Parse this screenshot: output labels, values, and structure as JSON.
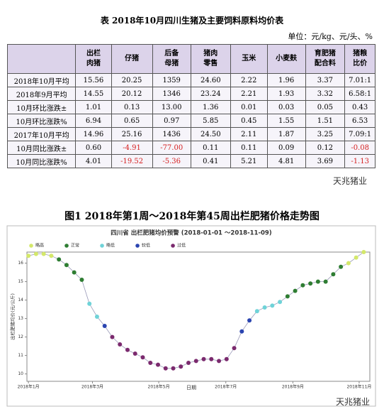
{
  "document": {
    "table_title": "表  2018年10月四川生猪及主要饲料原料均价表",
    "unit": "单位：元/kg、元/头、%",
    "table": {
      "header": [
        [],
        [
          "出栏",
          "肉猪"
        ],
        [
          "仔猪"
        ],
        [
          "后备",
          "母猪"
        ],
        [
          "猪肉",
          "零售"
        ],
        [
          "玉米"
        ],
        [
          "小麦麸"
        ],
        [
          "育肥猪",
          "配合料"
        ],
        [
          "猪粮",
          "比价"
        ]
      ],
      "rows": [
        [
          "2018年10月平均",
          "15.56",
          "20.25",
          "1359",
          "24.60",
          "2.22",
          "1.96",
          "3.37",
          "7.01:1"
        ],
        [
          "2018年9月平均",
          "14.55",
          "20.12",
          "1346",
          "23.24",
          "2.21",
          "1.93",
          "3.32",
          "6.58:1"
        ],
        [
          "10月环比涨跌±",
          "1.01",
          "0.13",
          "13.00",
          "1.36",
          "0.01",
          "0.03",
          "0.05",
          "0.43"
        ],
        [
          "10月环比涨跌%",
          "6.94",
          "0.65",
          "0.97",
          "5.85",
          "0.45",
          "1.55",
          "1.51",
          "6.53"
        ],
        [
          "2017年10月平均",
          "14.96",
          "25.16",
          "1436",
          "24.50",
          "2.11",
          "1.87",
          "3.25",
          "7.09:1"
        ],
        [
          "10月同比涨跌±",
          "0.60",
          "-4.91",
          "-77.00",
          "0.11",
          "0.11",
          "0.09",
          "0.12",
          "-0.08"
        ],
        [
          "10月同比涨跌%",
          "4.01",
          "-19.52",
          "-5.36",
          "0.41",
          "5.21",
          "4.81",
          "3.69",
          "-1.13"
        ]
      ]
    },
    "watermark": "天兆猪业",
    "figure_title": "图1  2018年第1周～2018年第45周出栏肥猪价格走势图"
  },
  "chart_data": {
    "type": "line",
    "title": "四川省 出栏肥猪均价预警  (2018-01-01 ～2018-11-09)",
    "x_label": "日期",
    "y_label": "出栏肥猪均价(元/公斤)",
    "line_color": "#9a9ab8",
    "x": [
      1,
      2,
      3,
      4,
      5,
      6,
      7,
      8,
      9,
      10,
      11,
      12,
      13,
      14,
      15,
      16,
      17,
      18,
      19,
      20,
      21,
      22,
      23,
      24,
      25,
      26,
      27,
      28,
      29,
      30,
      31,
      32,
      33,
      34,
      35,
      36,
      37,
      38,
      39,
      40,
      41,
      42,
      43,
      44,
      45
    ],
    "xlim": [
      0.8,
      45.8
    ],
    "xticks": [
      {
        "value": 1,
        "label": "2018年1月"
      },
      {
        "value": 9.4,
        "label": "2018年3月"
      },
      {
        "value": 18.1,
        "label": "2018年5月"
      },
      {
        "value": 26.9,
        "label": "2018年7月"
      },
      {
        "value": 35.7,
        "label": "2018年9月"
      },
      {
        "value": 44.4,
        "label": "2018年11月"
      }
    ],
    "ylim": [
      9.6,
      16.6
    ],
    "yticks": [
      10,
      11,
      12,
      13,
      14,
      15,
      16
    ],
    "series": [
      {
        "name": "略高",
        "color": "#d4e86a",
        "values": [
          16.4,
          16.5,
          16.5,
          16.4,
          null,
          null,
          null,
          null,
          null,
          null,
          null,
          null,
          null,
          null,
          null,
          null,
          null,
          null,
          null,
          null,
          null,
          null,
          null,
          null,
          null,
          null,
          null,
          null,
          null,
          null,
          null,
          null,
          null,
          null,
          null,
          null,
          null,
          null,
          null,
          null,
          null,
          null,
          16.0,
          16.3,
          16.6
        ]
      },
      {
        "name": "正常",
        "color": "#2e7d32",
        "values": [
          null,
          null,
          null,
          null,
          16.2,
          15.9,
          15.5,
          15.1,
          null,
          null,
          null,
          null,
          null,
          null,
          null,
          null,
          null,
          null,
          null,
          null,
          null,
          null,
          null,
          null,
          null,
          null,
          null,
          null,
          null,
          null,
          null,
          null,
          null,
          null,
          14.2,
          14.5,
          14.8,
          14.9,
          15.0,
          15.0,
          15.4,
          15.8,
          null,
          null,
          null
        ]
      },
      {
        "name": "略低",
        "color": "#6fd3d8",
        "values": [
          null,
          null,
          null,
          null,
          null,
          null,
          null,
          null,
          13.8,
          13.1,
          null,
          null,
          null,
          null,
          null,
          null,
          null,
          null,
          null,
          null,
          null,
          null,
          null,
          null,
          null,
          null,
          null,
          null,
          null,
          null,
          13.4,
          13.6,
          13.7,
          13.9,
          null,
          null,
          null,
          null,
          null,
          null,
          null,
          null,
          null,
          null,
          null
        ]
      },
      {
        "name": "较低",
        "color": "#2a44b0",
        "values": [
          null,
          null,
          null,
          null,
          null,
          null,
          null,
          null,
          null,
          null,
          12.6,
          null,
          null,
          null,
          null,
          null,
          null,
          null,
          null,
          null,
          null,
          null,
          null,
          null,
          null,
          null,
          null,
          null,
          12.3,
          12.9,
          null,
          null,
          null,
          null,
          null,
          null,
          null,
          null,
          null,
          null,
          null,
          null,
          null,
          null,
          null
        ]
      },
      {
        "name": "过低",
        "color": "#7b2a6e",
        "values": [
          null,
          null,
          null,
          null,
          null,
          null,
          null,
          null,
          null,
          null,
          null,
          12.0,
          11.6,
          11.3,
          11.1,
          10.9,
          10.6,
          10.5,
          10.3,
          10.3,
          10.4,
          10.6,
          10.7,
          10.8,
          10.8,
          10.7,
          10.8,
          11.4,
          null,
          null,
          null,
          null,
          null,
          null,
          null,
          null,
          null,
          null,
          null,
          null,
          null,
          null,
          null,
          null,
          null
        ]
      }
    ]
  }
}
